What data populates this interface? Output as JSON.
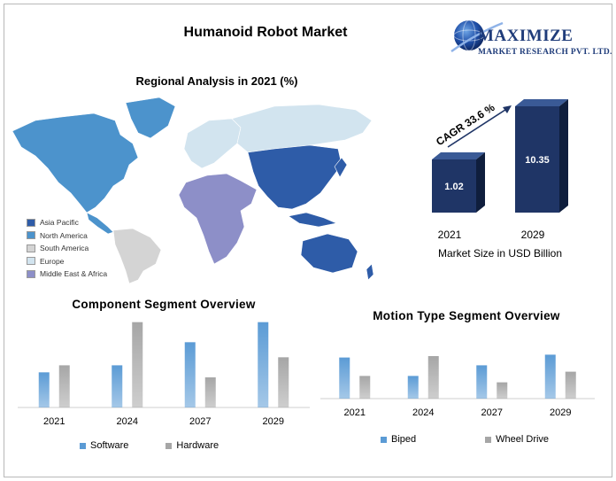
{
  "title": "Humanoid Robot Market",
  "logo": {
    "line1": "MAXIMIZE",
    "line2": "MARKET RESEARCH PVT. LTD.",
    "icon": "globe-icon"
  },
  "map": {
    "title": "Regional Analysis in 2021 (%)",
    "legend": [
      {
        "label": "Asia Pacific",
        "color": "#2e5ca8"
      },
      {
        "label": "North America",
        "color": "#4c93cc"
      },
      {
        "label": "South America",
        "color": "#d4d4d4"
      },
      {
        "label": "Europe",
        "color": "#d2e4ef"
      },
      {
        "label": "Middle East & Africa",
        "color": "#8d8fc8"
      }
    ]
  },
  "chart_data": [
    {
      "type": "bar",
      "categories": [
        "2021",
        "2029"
      ],
      "values": [
        1.02,
        10.35
      ],
      "value_labels": [
        "1.02",
        "10.35"
      ],
      "annotation": "CAGR 33.6 %",
      "xlabel": "Market Size in USD Billion",
      "colors": {
        "bar": "#1f3566",
        "edge": "#0f1e3d"
      }
    },
    {
      "type": "bar",
      "title": "Component Segment Overview",
      "categories": [
        "2021",
        "2024",
        "2027",
        "2029"
      ],
      "series": [
        {
          "name": "Software",
          "values": [
            35,
            42,
            65,
            85
          ],
          "color": "#5b9bd5"
        },
        {
          "name": "Hardware",
          "values": [
            42,
            85,
            30,
            50
          ],
          "color": "#a6a6a6"
        }
      ],
      "legend": "bottom"
    },
    {
      "type": "bar",
      "title": "Motion Type Segment Overview",
      "categories": [
        "2021",
        "2024",
        "2027",
        "2029"
      ],
      "series": [
        {
          "name": "Biped",
          "values": [
            58,
            32,
            47,
            62
          ],
          "color": "#5b9bd5"
        },
        {
          "name": "Wheel Drive",
          "values": [
            32,
            60,
            23,
            38
          ],
          "color": "#a6a6a6"
        }
      ],
      "legend": "bottom"
    }
  ]
}
